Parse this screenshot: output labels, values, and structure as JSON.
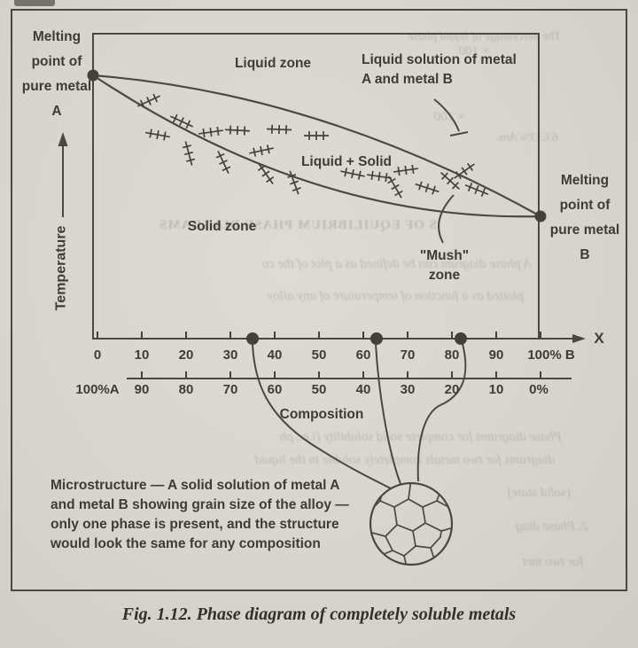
{
  "figure": {
    "caption": "Fig. 1.12. Phase diagram of completely soluble metals"
  },
  "diagram": {
    "y_axis_label": "Temperature",
    "x_axis_symbol": "X",
    "melting_point_a": "Melting point of pure metal A",
    "melting_point_b": "Melting point of pure metal B",
    "zone_liquid": "Liquid zone",
    "zone_liquid_solid": "Liquid + Solid",
    "zone_solid": "Solid zone",
    "zone_mush": "\"Mush\" zone",
    "annotation_liquid_solution": "Liquid solution of metal A and metal B",
    "composition_label": "Composition",
    "axes": {
      "top_scale_labels": [
        "0",
        "10",
        "20",
        "30",
        "40",
        "50",
        "60",
        "70",
        "80",
        "90",
        "100% B"
      ],
      "bottom_scale_labels": [
        "100%A",
        "90",
        "80",
        "70",
        "60",
        "50",
        "40",
        "30",
        "20",
        "10",
        "0%"
      ],
      "marked_points_percent_b": [
        35,
        63,
        82
      ]
    },
    "microstructure_note": "Microstructure — A solid solution of metal A and metal B showing grain size of the alloy — only one phase is present, and the structure would look the same for any composition"
  },
  "colors": {
    "paper": "#d8d5cf",
    "ink": "#46423a",
    "bleed": "#a5a198"
  },
  "bleedthrough": {
    "fragments": [
      "The percentage of liquid phase",
      "× 100",
      "× 100",
      "63.33%   Ans.",
      "S OF EQUILIBRIUM PHASE DIAGRAMS",
      "A phase diagram can be defined as a plot of the co",
      "plotted as a function of temperature of any alloy",
      "Phase diagrams for complete solid solubility (i.e., ph",
      "diagrams for two metals completely soluble in the liquid",
      "(solid state)",
      "2.  Phase diag",
      "for two met"
    ]
  }
}
